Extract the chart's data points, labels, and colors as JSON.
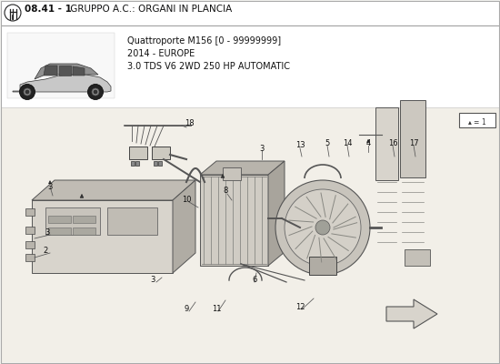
{
  "title_bold": "08.41 - 1",
  "title_rest": " GRUPPO A.C.: ORGANI IN PLANCIA",
  "subtitle_line1": "Quattroporte M156 [0 - 99999999]",
  "subtitle_line2": "2014 - EUROPE",
  "subtitle_line3": "3.0 TDS V6 2WD 250 HP AUTOMATIC",
  "bg_color": "#f5f5f0",
  "text_color": "#000000",
  "line_color": "#555555",
  "part_color_light": "#e0ddd5",
  "part_color_mid": "#c8c4bc",
  "part_color_dark": "#a8a49c",
  "header_bg": "#ffffff",
  "diagram_bg": "#f0ede8"
}
